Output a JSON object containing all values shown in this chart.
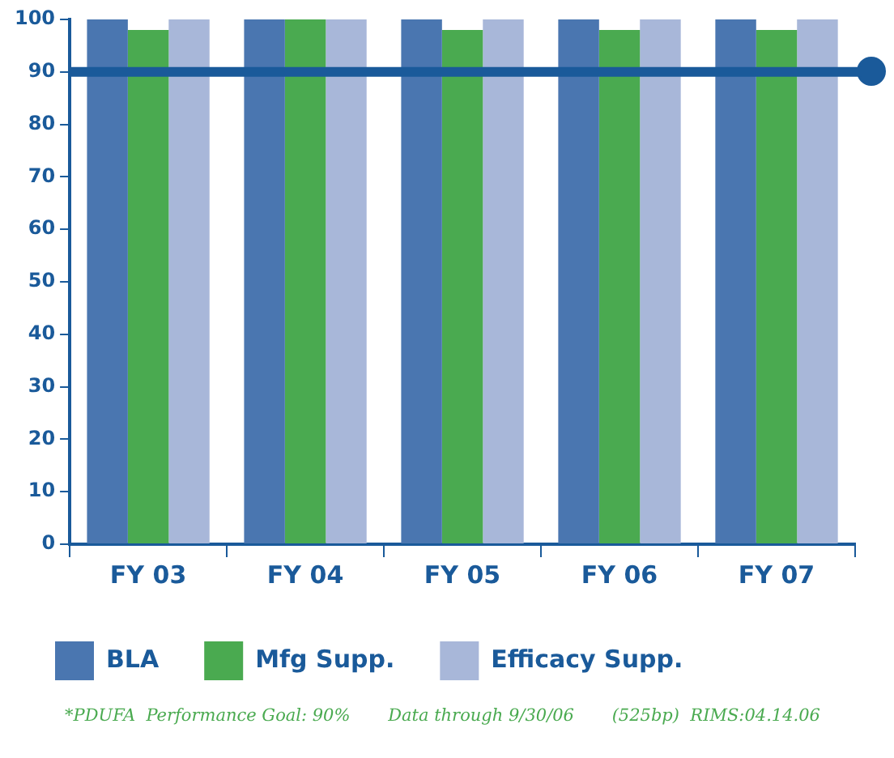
{
  "chart_data": {
    "type": "bar",
    "categories": [
      "FY 03",
      "FY 04",
      "FY 05",
      "FY 06",
      "FY 07"
    ],
    "series": [
      {
        "name": "BLA",
        "color": "#4a76b0",
        "values": [
          100,
          100,
          100,
          100,
          100
        ]
      },
      {
        "name": "Mfg Supp.",
        "color": "#4aaa50",
        "values": [
          98,
          100,
          98,
          98,
          98
        ]
      },
      {
        "name": "Efficacy Supp.",
        "color": "#a8b7d9",
        "values": [
          100,
          100,
          100,
          100,
          100
        ]
      }
    ],
    "ylim": [
      0,
      100
    ],
    "yticks": [
      0,
      10,
      20,
      30,
      40,
      50,
      60,
      70,
      80,
      90,
      100
    ],
    "grid": false,
    "legend": "bottom",
    "ref_lines": [
      {
        "axis": "y",
        "value": 90,
        "color": "#1a5a9a"
      }
    ],
    "annotations": [
      "*PDUFA  Performance Goal: 90%       Data through 9/30/06       (525bp)  RIMS:04.14.06"
    ]
  }
}
